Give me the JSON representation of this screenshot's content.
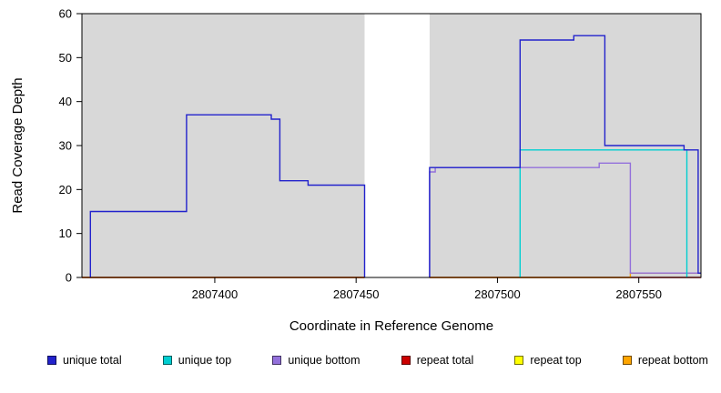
{
  "chart_data": {
    "type": "line",
    "subtype": "step-coverage-plot",
    "title": "",
    "xlabel": "Coordinate in Reference Genome",
    "ylabel": "Read Coverage Depth",
    "xlim": [
      2807353,
      2807572
    ],
    "ylim": [
      0,
      60
    ],
    "grid": "off",
    "legend_position": "bottom",
    "plot_background": "#FFFFFF",
    "xticks": [
      {
        "value": 2807400,
        "label": "2807400"
      },
      {
        "value": 2807450,
        "label": "2807450"
      },
      {
        "value": 2807500,
        "label": "2807500"
      },
      {
        "value": 2807550,
        "label": "2807550"
      }
    ],
    "yticks": [
      {
        "value": 0,
        "label": "0"
      },
      {
        "value": 10,
        "label": "10"
      },
      {
        "value": 20,
        "label": "20"
      },
      {
        "value": 30,
        "label": "30"
      },
      {
        "value": 40,
        "label": "40"
      },
      {
        "value": 50,
        "label": "50"
      },
      {
        "value": 60,
        "label": "60"
      }
    ],
    "background_regions": [
      {
        "x0": 2807353,
        "x1": 2807453,
        "color": "#D8D8D8"
      },
      {
        "x0": 2807476,
        "x1": 2807572,
        "color": "#D8D8D8"
      }
    ],
    "series": [
      {
        "name": "repeat top",
        "color": "#FFFF00",
        "paths": [
          [
            [
              2807353,
              0
            ],
            [
              2807453,
              0
            ]
          ]
        ]
      },
      {
        "name": "repeat total",
        "color": "#CC0000",
        "paths": [
          [
            [
              2807353,
              0
            ],
            [
              2807453,
              0
            ]
          ],
          [
            [
              2807476,
              0
            ],
            [
              2807572,
              0
            ]
          ]
        ]
      },
      {
        "name": "repeat bottom",
        "color": "#FFA500",
        "paths": [
          [
            [
              2807476,
              0
            ],
            [
              2807547,
              0
            ],
            [
              2807547,
              1
            ],
            [
              2807572,
              1
            ]
          ]
        ]
      },
      {
        "name": "unique bottom",
        "color": "#9370DB",
        "paths": [
          [
            [
              2807476,
              0
            ],
            [
              2807476,
              24
            ],
            [
              2807478,
              24
            ],
            [
              2807478,
              25
            ],
            [
              2807536,
              25
            ],
            [
              2807536,
              26
            ],
            [
              2807547,
              26
            ],
            [
              2807547,
              1
            ],
            [
              2807572,
              1
            ]
          ]
        ]
      },
      {
        "name": "unique top",
        "color": "#00CED1",
        "paths": [
          [
            [
              2807508,
              0
            ],
            [
              2807508,
              29
            ],
            [
              2807567,
              29
            ],
            [
              2807567,
              0
            ]
          ]
        ]
      },
      {
        "name": "unique total",
        "color": "#2222CC",
        "paths": [
          [
            [
              2807356,
              0
            ],
            [
              2807356,
              15
            ],
            [
              2807390,
              15
            ],
            [
              2807390,
              37
            ],
            [
              2807420,
              37
            ],
            [
              2807420,
              36
            ],
            [
              2807423,
              36
            ],
            [
              2807423,
              22
            ],
            [
              2807433,
              22
            ],
            [
              2807433,
              21
            ],
            [
              2807453,
              21
            ],
            [
              2807453,
              0
            ]
          ],
          [
            [
              2807476,
              0
            ],
            [
              2807476,
              25
            ],
            [
              2807508,
              25
            ],
            [
              2807508,
              54
            ],
            [
              2807527,
              54
            ],
            [
              2807527,
              55
            ],
            [
              2807538,
              55
            ],
            [
              2807538,
              30
            ],
            [
              2807566,
              30
            ],
            [
              2807566,
              29
            ],
            [
              2807571,
              29
            ],
            [
              2807571,
              1
            ],
            [
              2807572,
              1
            ]
          ]
        ]
      }
    ],
    "legend": [
      {
        "label": "unique total",
        "color": "#2222CC"
      },
      {
        "label": "unique top",
        "color": "#00CED1"
      },
      {
        "label": "unique bottom",
        "color": "#9370DB"
      },
      {
        "label": "repeat total",
        "color": "#CC0000"
      },
      {
        "label": "repeat top",
        "color": "#FFFF00"
      },
      {
        "label": "repeat bottom",
        "color": "#FFA500"
      }
    ]
  }
}
